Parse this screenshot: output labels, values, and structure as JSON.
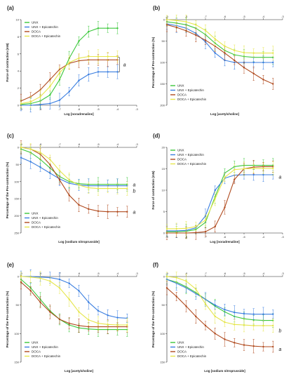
{
  "colors": {
    "UNX": "#3cc83c",
    "UNX + Epicatechin": "#3a7ee0",
    "DOCA": "#b04a1e",
    "DOCA + Epicatechin": "#e6e64c"
  },
  "chart_data": [
    {
      "panel": "(a)",
      "type": "line",
      "ylabel": "Force of contraction (mN)",
      "xlabel": "Log [noradrenaline]",
      "xlim": [
        -9,
        -3
      ],
      "ylim": [
        0,
        10
      ],
      "xticks": [
        "-9",
        "-8",
        "-7",
        "-6",
        "-5",
        "-4",
        "-3"
      ],
      "yticks": [
        "0",
        "2",
        "4",
        "6",
        "8",
        "10"
      ],
      "y_inverted": false,
      "legend": "top-left",
      "annotations": [
        {
          "text": "a",
          "x": -3.7,
          "y": 4.7
        }
      ],
      "bracket": {
        "x": -3.9,
        "y1": 3.9,
        "y2": 5.6
      },
      "series": [
        {
          "name": "UNX",
          "x": [
            -9,
            -8.5,
            -8,
            -7.5,
            -7,
            -6.5,
            -6,
            -5.5,
            -5,
            -4.5,
            -4
          ],
          "y": [
            0.1,
            0.2,
            0.5,
            1.2,
            3.0,
            5.5,
            7.5,
            8.6,
            9.0,
            9.0,
            9.0
          ]
        },
        {
          "name": "UNX + Epicatechin",
          "x": [
            -9,
            -8.5,
            -8,
            -7.5,
            -7,
            -6.5,
            -6,
            -5.5,
            -5,
            -4.5,
            -4
          ],
          "y": [
            0.0,
            0.0,
            0.1,
            0.2,
            0.6,
            1.6,
            2.9,
            3.6,
            3.9,
            3.9,
            3.9
          ]
        },
        {
          "name": "DOCA",
          "x": [
            -9,
            -8.5,
            -8,
            -7.5,
            -7,
            -6.5,
            -6,
            -5.5,
            -5,
            -4.5,
            -4
          ],
          "y": [
            0.5,
            1.0,
            1.8,
            3.0,
            4.2,
            4.9,
            5.2,
            5.3,
            5.3,
            5.3,
            5.3
          ]
        },
        {
          "name": "DOCA + Epicatechin",
          "x": [
            -9,
            -8.5,
            -8,
            -7.5,
            -7,
            -6.5,
            -6,
            -5.5,
            -5,
            -4.5,
            -4
          ],
          "y": [
            0.2,
            0.4,
            1.0,
            2.2,
            3.8,
            5.0,
            5.5,
            5.7,
            5.7,
            5.7,
            5.7
          ]
        }
      ]
    },
    {
      "panel": "(b)",
      "type": "line",
      "ylabel": "Percentage of Pre-contraction (%)",
      "xlabel": "Log [acetylcholine]",
      "xlim": [
        -9,
        -3
      ],
      "ylim": [
        0,
        200
      ],
      "xticks": [
        "-9",
        "-8",
        "-7",
        "-6",
        "-5",
        "-4",
        "-3"
      ],
      "yticks": [
        "0",
        "50",
        "100",
        "150",
        "200"
      ],
      "y_inverted": true,
      "legend": "bottom-left",
      "annotations": [],
      "series": [
        {
          "name": "UNX",
          "x": [
            -9,
            -8.5,
            -8,
            -7.5,
            -7,
            -6.5,
            -6,
            -5.5,
            -5,
            -4.5,
            -4,
            -3.5
          ],
          "y": [
            5,
            8,
            12,
            20,
            35,
            55,
            72,
            82,
            86,
            88,
            88,
            88
          ]
        },
        {
          "name": "UNX + Epicatechin",
          "x": [
            -9,
            -8.5,
            -8,
            -7.5,
            -7,
            -6.5,
            -6,
            -5.5,
            -5,
            -4.5,
            -4,
            -3.5
          ],
          "y": [
            10,
            14,
            20,
            32,
            52,
            78,
            95,
            100,
            100,
            100,
            100,
            100
          ]
        },
        {
          "name": "DOCA",
          "x": [
            -9,
            -8.5,
            -8,
            -7.5,
            -7,
            -6.5,
            -6,
            -5.5,
            -5,
            -4.5,
            -4,
            -3.5
          ],
          "y": [
            12,
            18,
            26,
            36,
            48,
            62,
            78,
            95,
            112,
            126,
            140,
            150
          ]
        },
        {
          "name": "DOCA + Epicatechin",
          "x": [
            -9,
            -8.5,
            -8,
            -7.5,
            -7,
            -6.5,
            -6,
            -5.5,
            -5,
            -4.5,
            -4,
            -3.5
          ],
          "y": [
            0,
            2,
            5,
            12,
            25,
            45,
            62,
            72,
            77,
            78,
            78,
            78
          ]
        }
      ]
    },
    {
      "panel": "(c)",
      "type": "line",
      "ylabel": "Percentage of the Pre-contraction (%)",
      "xlabel": "Log [sodium nitroprusside]",
      "xlim": [
        -9,
        -3
      ],
      "ylim": [
        0,
        250
      ],
      "xticks": [
        "-9",
        "-8",
        "-7",
        "-6",
        "-5",
        "-4",
        "-3"
      ],
      "yticks": [
        "0",
        "50",
        "100",
        "150",
        "200",
        "250"
      ],
      "y_inverted": true,
      "legend": "bottom-left",
      "annotations": [
        {
          "text": "a",
          "x": -3.2,
          "y": 110
        },
        {
          "text": "b",
          "x": -3.2,
          "y": 128
        },
        {
          "text": "a",
          "x": -3.2,
          "y": 190
        }
      ],
      "series": [
        {
          "name": "UNX",
          "x": [
            -9,
            -8.5,
            -8,
            -7.5,
            -7,
            -6.5,
            -6,
            -5.5,
            -5,
            -4.5,
            -4,
            -3.5
          ],
          "y": [
            5,
            15,
            35,
            60,
            85,
            100,
            106,
            108,
            108,
            108,
            108,
            108
          ]
        },
        {
          "name": "UNX + Epicatechin",
          "x": [
            -9,
            -8.5,
            -8,
            -7.5,
            -7,
            -6.5,
            -6,
            -5.5,
            -5,
            -4.5,
            -4,
            -3.5
          ],
          "y": [
            30,
            42,
            58,
            75,
            92,
            105,
            110,
            112,
            112,
            112,
            112,
            112
          ]
        },
        {
          "name": "DOCA",
          "x": [
            -9,
            -8.5,
            -8,
            -7.5,
            -7,
            -6.5,
            -6,
            -5.5,
            -5,
            -4.5,
            -4,
            -3.5
          ],
          "y": [
            0,
            5,
            20,
            50,
            95,
            140,
            168,
            180,
            186,
            188,
            188,
            188
          ]
        },
        {
          "name": "DOCA + Epicatechin",
          "x": [
            -9,
            -8.5,
            -8,
            -7.5,
            -7,
            -6.5,
            -6,
            -5.5,
            -5,
            -4.5,
            -4,
            -3.5
          ],
          "y": [
            0,
            5,
            15,
            35,
            68,
            95,
            110,
            118,
            120,
            120,
            120,
            120
          ]
        }
      ]
    },
    {
      "panel": "(d)",
      "type": "line",
      "ylabel": "Force of contraction (mN)",
      "xlabel": "Log [noradrenaline]",
      "xlim": [
        -9,
        -3
      ],
      "ylim": [
        0,
        20
      ],
      "xticks": [
        "-9",
        "-8",
        "-7",
        "-6",
        "-5",
        "-4",
        "-3"
      ],
      "yticks": [
        "0",
        "5",
        "10",
        "15",
        "20"
      ],
      "y_inverted": false,
      "legend": "top-left",
      "annotations": [
        {
          "text": "a",
          "x": -3.2,
          "y": 13
        }
      ],
      "series": [
        {
          "name": "UNX",
          "x": [
            -9,
            -8.5,
            -8,
            -7.5,
            -7,
            -6.5,
            -6,
            -5.5,
            -5,
            -4.5,
            -4,
            -3.5
          ],
          "y": [
            0.3,
            0.3,
            0.4,
            0.8,
            2.5,
            8.5,
            14.0,
            15.5,
            15.8,
            15.8,
            15.8,
            15.8
          ]
        },
        {
          "name": "UNX + Epicatechin",
          "x": [
            -9,
            -8.5,
            -8,
            -7.5,
            -7,
            -6.5,
            -6,
            -5.5,
            -5,
            -4.5,
            -4,
            -3.5
          ],
          "y": [
            0.5,
            0.5,
            0.6,
            1.2,
            4.0,
            10.0,
            12.8,
            13.5,
            13.6,
            13.6,
            13.6,
            13.6
          ]
        },
        {
          "name": "DOCA",
          "x": [
            -9,
            -8.5,
            -8,
            -7.5,
            -7,
            -6.5,
            -6,
            -5.5,
            -5,
            -4.5,
            -4,
            -3.5
          ],
          "y": [
            0.0,
            0.0,
            0.0,
            0.1,
            0.3,
            1.5,
            6.0,
            12.5,
            15.0,
            15.4,
            15.5,
            15.5
          ]
        },
        {
          "name": "DOCA + Epicatechin",
          "x": [
            -9,
            -8.5,
            -8,
            -7.5,
            -7,
            -6.5,
            -6,
            -5.5,
            -5,
            -4.5,
            -4,
            -3.5
          ],
          "y": [
            1.0,
            1.0,
            1.1,
            1.5,
            3.0,
            8.0,
            13.0,
            14.8,
            15.0,
            15.1,
            15.1,
            15.1
          ]
        }
      ]
    },
    {
      "panel": "(e)",
      "type": "line",
      "ylabel": "Percentage of the Pre-contraction (%)",
      "xlabel": "Log [acetylcholine]",
      "xlim": [
        -9,
        -3
      ],
      "ylim": [
        0,
        150
      ],
      "xticks": [
        "-9",
        "-8",
        "-7",
        "-6",
        "-5",
        "-4",
        "-3"
      ],
      "yticks": [
        "0",
        "50",
        "100",
        "150"
      ],
      "y_inverted": true,
      "legend": "bottom-left",
      "annotations": [],
      "series": [
        {
          "name": "UNX",
          "x": [
            -9,
            -8.5,
            -8,
            -7.5,
            -7,
            -6.5,
            -6,
            -5.5,
            -5,
            -4.5,
            -4,
            -3.5
          ],
          "y": [
            5,
            20,
            40,
            60,
            75,
            85,
            90,
            92,
            93,
            93,
            93,
            93
          ]
        },
        {
          "name": "UNX + Epicatechin",
          "x": [
            -9,
            -8.5,
            -8,
            -7.5,
            -7,
            -6.5,
            -6,
            -5.5,
            -5,
            -4.5,
            -4,
            -3.5
          ],
          "y": [
            0,
            0,
            1,
            2,
            5,
            12,
            25,
            45,
            60,
            68,
            72,
            73
          ]
        },
        {
          "name": "DOCA",
          "x": [
            -9,
            -8.5,
            -8,
            -7.5,
            -7,
            -6.5,
            -6,
            -5.5,
            -5,
            -4.5,
            -4,
            -3.5
          ],
          "y": [
            10,
            25,
            45,
            62,
            75,
            82,
            86,
            88,
            88,
            88,
            88,
            88
          ]
        },
        {
          "name": "DOCA + Epicatechin",
          "x": [
            -9,
            -8.5,
            -8,
            -7.5,
            -7,
            -6.5,
            -6,
            -5.5,
            -5,
            -4.5,
            -4,
            -3.5
          ],
          "y": [
            0,
            1,
            3,
            8,
            20,
            40,
            62,
            76,
            82,
            84,
            85,
            85
          ]
        }
      ]
    },
    {
      "panel": "(f)",
      "type": "line",
      "ylabel": "Percentage of the Pre-contraction (%)",
      "xlabel": "Log [sodium nitroprusside]",
      "xlim": [
        -9,
        -3
      ],
      "ylim": [
        0,
        150
      ],
      "xticks": [
        "-9",
        "-8",
        "-7",
        "-6",
        "-5",
        "-4",
        "-3"
      ],
      "yticks": [
        "0",
        "50",
        "100",
        "150"
      ],
      "y_inverted": true,
      "legend": "bottom-left",
      "annotations": [
        {
          "text": "b",
          "x": -3.2,
          "y": 95
        },
        {
          "text": "a",
          "x": -3.2,
          "y": 128
        }
      ],
      "series": [
        {
          "name": "UNX",
          "x": [
            -9,
            -8.5,
            -8,
            -7.5,
            -7,
            -6.5,
            -6,
            -5.5,
            -5,
            -4.5,
            -4,
            -3.5
          ],
          "y": [
            5,
            10,
            18,
            28,
            40,
            52,
            62,
            70,
            74,
            76,
            77,
            77
          ]
        },
        {
          "name": "UNX + Epicatechin",
          "x": [
            -9,
            -8.5,
            -8,
            -7.5,
            -7,
            -6.5,
            -6,
            -5.5,
            -5,
            -4.5,
            -4,
            -3.5
          ],
          "y": [
            5,
            12,
            20,
            30,
            40,
            50,
            58,
            63,
            65,
            66,
            66,
            66
          ]
        },
        {
          "name": "DOCA",
          "x": [
            -9,
            -8.5,
            -8,
            -7.5,
            -7,
            -6.5,
            -6,
            -5.5,
            -5,
            -4.5,
            -4,
            -3.5
          ],
          "y": [
            20,
            35,
            52,
            70,
            86,
            100,
            110,
            116,
            120,
            122,
            123,
            123
          ]
        },
        {
          "name": "DOCA + Epicatechin",
          "x": [
            -9,
            -8.5,
            -8,
            -7.5,
            -7,
            -6.5,
            -6,
            -5.5,
            -5,
            -4.5,
            -4,
            -3.5
          ],
          "y": [
            0,
            2,
            8,
            22,
            48,
            70,
            80,
            84,
            85,
            86,
            86,
            86
          ]
        }
      ]
    }
  ]
}
